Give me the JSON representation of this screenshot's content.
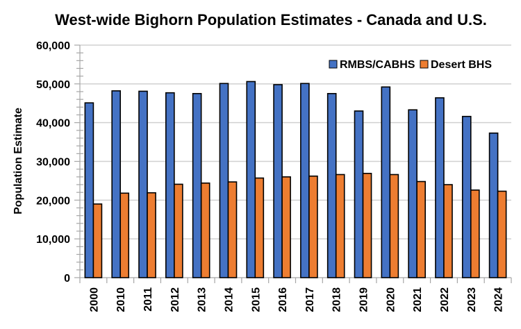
{
  "chart_data": {
    "type": "bar",
    "title": "West-wide Bighorn Population Estimates - Canada and U.S.",
    "xlabel": "",
    "ylabel": "Population Estimate",
    "ylim": [
      0,
      60000
    ],
    "y_major_step": 10000,
    "y_minor_step": 2000,
    "y_tick_labels": [
      "0",
      "10,000",
      "20,000",
      "30,000",
      "40,000",
      "50,000",
      "60,000"
    ],
    "grid": "horizontal major",
    "legend_position": "top-right",
    "categories": [
      "2000",
      "2010",
      "2011",
      "2012",
      "2013",
      "2014",
      "2015",
      "2016",
      "2017",
      "2018",
      "2019",
      "2020",
      "2021",
      "2022",
      "2023",
      "2024"
    ],
    "series": [
      {
        "name": "RMBS/CABHS",
        "color": "#4472c4",
        "values": [
          45100,
          48200,
          48100,
          47700,
          47500,
          50100,
          50600,
          49800,
          50100,
          47500,
          43000,
          49200,
          43300,
          46400,
          41600,
          37300
        ]
      },
      {
        "name": "Desert BHS",
        "color": "#ed7d31",
        "values": [
          19000,
          21800,
          21900,
          24100,
          24400,
          24700,
          25700,
          26000,
          26200,
          26600,
          26900,
          26600,
          24800,
          24000,
          22600,
          22300
        ]
      }
    ]
  }
}
